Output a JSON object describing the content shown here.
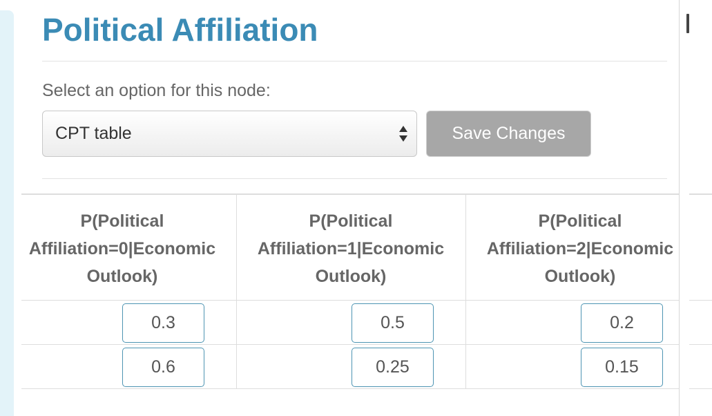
{
  "header": {
    "title": "Political Affiliation"
  },
  "form": {
    "select_label": "Select an option for this node:",
    "selected_option": "CPT table",
    "save_label": "Save Changes"
  },
  "cpt": {
    "columns": [
      "P(Political\nAffiliation=0|Economic\nOutlook)",
      "P(Political\nAffiliation=1|Economic\nOutlook)",
      "P(Political\nAffiliation=2|Economic\nOutlook)"
    ],
    "rows": [
      [
        "0.3",
        "0.5",
        "0.2"
      ],
      [
        "0.6",
        "0.25",
        "0.15"
      ]
    ]
  },
  "colors": {
    "title": "#3b8bb5",
    "input_border": "#4d94b2",
    "button_bg": "#a7a7a7",
    "sidebar_bg": "#e3f3f9"
  },
  "icons": {
    "select_arrows": "select-arrows-icon"
  }
}
